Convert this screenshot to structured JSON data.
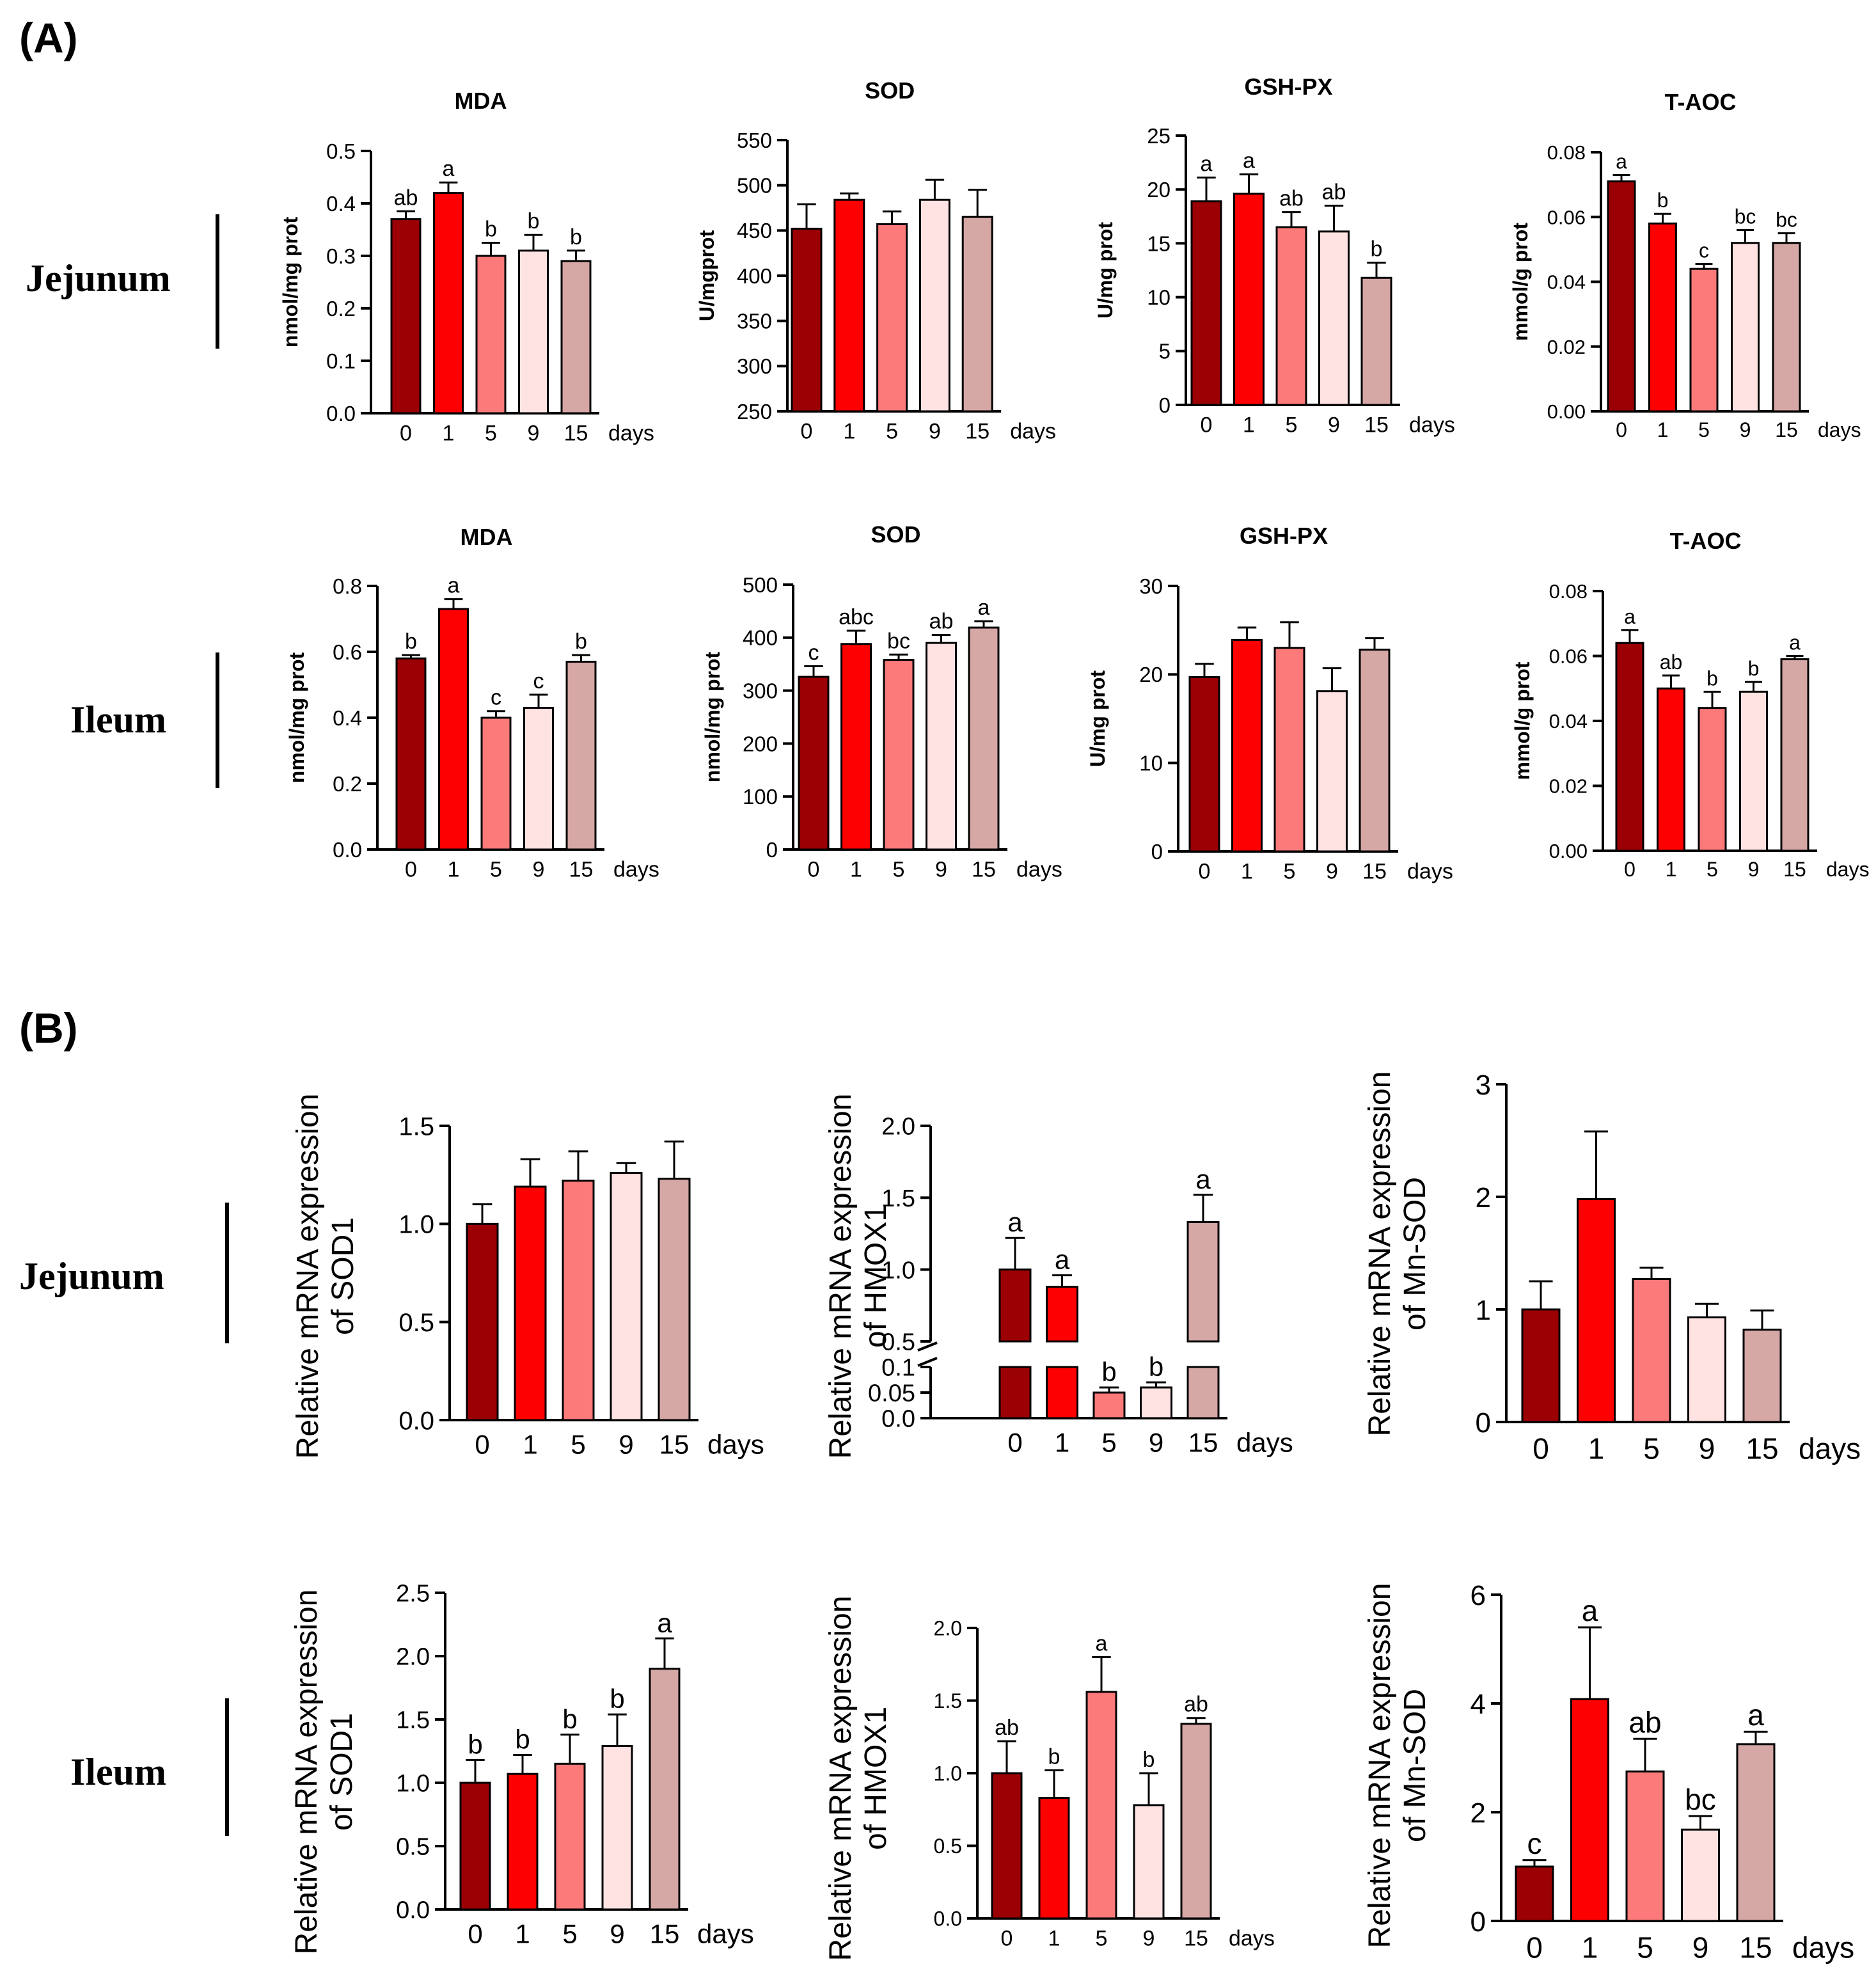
{
  "colors": {
    "day0": "#9b0004",
    "day1": "#fd0000",
    "day5": "#fd7a7b",
    "day9": "#ffe2e2",
    "day15": "#d5a7a5"
  },
  "sections": {
    "a_label": "(A)",
    "b_label": "(B)",
    "a_row1_tissue": "Jejunum",
    "a_row2_tissue": "Ileum",
    "b_row1_tissue": "Jejunum",
    "b_row2_tissue": "Ileum"
  },
  "chart_data": [
    {
      "id": "a_jej_mda",
      "type": "bar",
      "title": "MDA",
      "ylabel": "nmol/mg prot",
      "xlabel": "days",
      "categories": [
        "0",
        "1",
        "5",
        "9",
        "15"
      ],
      "values": [
        0.37,
        0.42,
        0.3,
        0.31,
        0.29
      ],
      "errors": [
        0.015,
        0.02,
        0.025,
        0.03,
        0.02
      ],
      "letters": [
        "ab",
        "a",
        "b",
        "b",
        "b"
      ],
      "ylim": [
        0,
        0.5
      ],
      "yticks": [
        "0.0",
        "0.1",
        "0.2",
        "0.3",
        "0.4",
        "0.5"
      ]
    },
    {
      "id": "a_jej_sod",
      "type": "bar",
      "title": "SOD",
      "ylabel": "U/mgprot",
      "xlabel": "days",
      "categories": [
        "0",
        "1",
        "5",
        "9",
        "15"
      ],
      "values": [
        452,
        484,
        457,
        484,
        465
      ],
      "errors": [
        27,
        7,
        14,
        22,
        30
      ],
      "letters": [
        "",
        "",
        "",
        "",
        ""
      ],
      "ylim": [
        250,
        550
      ],
      "yticks": [
        "250",
        "300",
        "350",
        "400",
        "450",
        "500",
        "550"
      ]
    },
    {
      "id": "a_jej_gsh",
      "type": "bar",
      "title": "GSH-PX",
      "ylabel": "U/mg prot",
      "xlabel": "days",
      "categories": [
        "0",
        "1",
        "5",
        "9",
        "15"
      ],
      "values": [
        18.9,
        19.6,
        16.5,
        16.1,
        11.8
      ],
      "errors": [
        2.2,
        1.8,
        1.4,
        2.4,
        1.4
      ],
      "letters": [
        "a",
        "a",
        "ab",
        "ab",
        "b"
      ],
      "ylim": [
        0,
        25
      ],
      "yticks": [
        "0",
        "5",
        "10",
        "15",
        "20",
        "25"
      ]
    },
    {
      "id": "a_jej_taoc",
      "type": "bar",
      "title": "T-AOC",
      "ylabel": "mmol/g prot",
      "xlabel": "days",
      "categories": [
        "0",
        "1",
        "5",
        "9",
        "15"
      ],
      "values": [
        0.071,
        0.058,
        0.044,
        0.052,
        0.052
      ],
      "errors": [
        0.002,
        0.003,
        0.0015,
        0.004,
        0.003
      ],
      "letters": [
        "a",
        "b",
        "c",
        "bc",
        "bc"
      ],
      "ylim": [
        0,
        0.08
      ],
      "yticks": [
        "0.00",
        "0.02",
        "0.04",
        "0.06",
        "0.08"
      ]
    },
    {
      "id": "a_ile_mda",
      "type": "bar",
      "title": "MDA",
      "ylabel": "nmol/mg prot",
      "xlabel": "days",
      "categories": [
        "0",
        "1",
        "5",
        "9",
        "15"
      ],
      "values": [
        0.58,
        0.73,
        0.4,
        0.43,
        0.57
      ],
      "errors": [
        0.01,
        0.03,
        0.02,
        0.04,
        0.02
      ],
      "letters": [
        "b",
        "a",
        "c",
        "c",
        "b"
      ],
      "ylim": [
        0,
        0.8
      ],
      "yticks": [
        "0.0",
        "0.2",
        "0.4",
        "0.6",
        "0.8"
      ]
    },
    {
      "id": "a_ile_sod",
      "type": "bar",
      "title": "SOD",
      "ylabel": "nmol/mg prot",
      "xlabel": "days",
      "categories": [
        "0",
        "1",
        "5",
        "9",
        "15"
      ],
      "values": [
        326,
        388,
        358,
        390,
        419
      ],
      "errors": [
        20,
        25,
        10,
        15,
        12
      ],
      "letters": [
        "c",
        "abc",
        "bc",
        "ab",
        "a"
      ],
      "ylim": [
        0,
        500
      ],
      "yticks": [
        "0",
        "100",
        "200",
        "300",
        "400",
        "500"
      ]
    },
    {
      "id": "a_ile_gsh",
      "type": "bar",
      "title": "GSH-PX",
      "ylabel": "U/mg prot",
      "xlabel": "days",
      "categories": [
        "0",
        "1",
        "5",
        "9",
        "15"
      ],
      "values": [
        19.7,
        23.9,
        23.0,
        18.1,
        22.8
      ],
      "errors": [
        1.5,
        1.4,
        2.9,
        2.6,
        1.3
      ],
      "letters": [
        "",
        "",
        "",
        "",
        ""
      ],
      "ylim": [
        0,
        30
      ],
      "yticks": [
        "0",
        "10",
        "20",
        "30"
      ]
    },
    {
      "id": "a_ile_taoc",
      "type": "bar",
      "title": "T-AOC",
      "ylabel": "mmol/g prot",
      "xlabel": "days",
      "categories": [
        "0",
        "1",
        "5",
        "9",
        "15"
      ],
      "values": [
        0.064,
        0.05,
        0.044,
        0.049,
        0.059
      ],
      "errors": [
        0.004,
        0.004,
        0.005,
        0.003,
        0.001
      ],
      "letters": [
        "a",
        "ab",
        "b",
        "b",
        "a"
      ],
      "ylim": [
        0,
        0.08
      ],
      "yticks": [
        "0.00",
        "0.02",
        "0.04",
        "0.06",
        "0.08"
      ]
    },
    {
      "id": "b_jej_sod1",
      "type": "bar",
      "title": "",
      "ylabel": "Relative mRNA expression of SOD1",
      "xlabel": "days",
      "categories": [
        "0",
        "1",
        "5",
        "9",
        "15"
      ],
      "values": [
        1.0,
        1.19,
        1.22,
        1.26,
        1.23
      ],
      "errors": [
        0.1,
        0.14,
        0.15,
        0.05,
        0.19
      ],
      "letters": [
        "",
        "",
        "",
        "",
        ""
      ],
      "ylim": [
        0,
        1.5
      ],
      "yticks": [
        "0.0",
        "0.5",
        "1.0",
        "1.5"
      ]
    },
    {
      "id": "b_jej_hmox1",
      "type": "bar",
      "title": "",
      "ylabel": "Relative mRNA expression of HMOX1",
      "xlabel": "days",
      "categories": [
        "0",
        "1",
        "5",
        "9",
        "15"
      ],
      "values": [
        1.0,
        0.88,
        0.05,
        0.06,
        1.33
      ],
      "errors": [
        0.22,
        0.08,
        0.01,
        0.01,
        0.19
      ],
      "letters": [
        "a",
        "a",
        "b",
        "b",
        "a"
      ],
      "ylim": [
        0,
        2.0
      ],
      "axis_break": [
        0.1,
        0.5
      ],
      "yticks": [
        "0.0",
        "0.05",
        "0.1",
        "0.5",
        "1.0",
        "1.5",
        "2.0"
      ]
    },
    {
      "id": "b_jej_mnsod",
      "type": "bar",
      "title": "",
      "ylabel": "Relative mRNA expression of Mn-SOD",
      "xlabel": "days",
      "categories": [
        "0",
        "1",
        "5",
        "9",
        "15"
      ],
      "values": [
        1.0,
        1.98,
        1.27,
        0.93,
        0.82
      ],
      "errors": [
        0.25,
        0.6,
        0.1,
        0.12,
        0.17
      ],
      "letters": [
        "",
        "",
        "",
        "",
        ""
      ],
      "ylim": [
        0,
        3
      ],
      "yticks": [
        "0",
        "1",
        "2",
        "3"
      ]
    },
    {
      "id": "b_ile_sod1",
      "type": "bar",
      "title": "",
      "ylabel": "Relative mRNA expression of SOD1",
      "xlabel": "days",
      "categories": [
        "0",
        "1",
        "5",
        "9",
        "15"
      ],
      "values": [
        1.0,
        1.07,
        1.15,
        1.29,
        1.9
      ],
      "errors": [
        0.18,
        0.15,
        0.23,
        0.25,
        0.24
      ],
      "letters": [
        "b",
        "b",
        "b",
        "b",
        "a"
      ],
      "ylim": [
        0,
        2.5
      ],
      "yticks": [
        "0.0",
        "0.5",
        "1.0",
        "1.5",
        "2.0",
        "2.5"
      ]
    },
    {
      "id": "b_ile_hmox1",
      "type": "bar",
      "title": "",
      "ylabel": "Relative mRNA expression of HMOX1",
      "xlabel": "days",
      "categories": [
        "0",
        "1",
        "5",
        "9",
        "15"
      ],
      "values": [
        1.0,
        0.83,
        1.56,
        0.78,
        1.34
      ],
      "errors": [
        0.22,
        0.19,
        0.24,
        0.22,
        0.04
      ],
      "letters": [
        "ab",
        "b",
        "a",
        "b",
        "ab"
      ],
      "ylim": [
        0,
        2.0
      ],
      "yticks": [
        "0.0",
        "0.5",
        "1.0",
        "1.5",
        "2.0"
      ]
    },
    {
      "id": "b_ile_mnsod",
      "type": "bar",
      "title": "",
      "ylabel": "Relative mRNA expression of Mn-SOD",
      "xlabel": "days",
      "categories": [
        "0",
        "1",
        "5",
        "9",
        "15"
      ],
      "values": [
        1.0,
        4.08,
        2.75,
        1.68,
        3.25
      ],
      "errors": [
        0.12,
        1.32,
        0.6,
        0.25,
        0.23
      ],
      "letters": [
        "c",
        "a",
        "ab",
        "bc",
        "a"
      ],
      "ylim": [
        0,
        6
      ],
      "yticks": [
        "0",
        "2",
        "4",
        "6"
      ]
    }
  ]
}
